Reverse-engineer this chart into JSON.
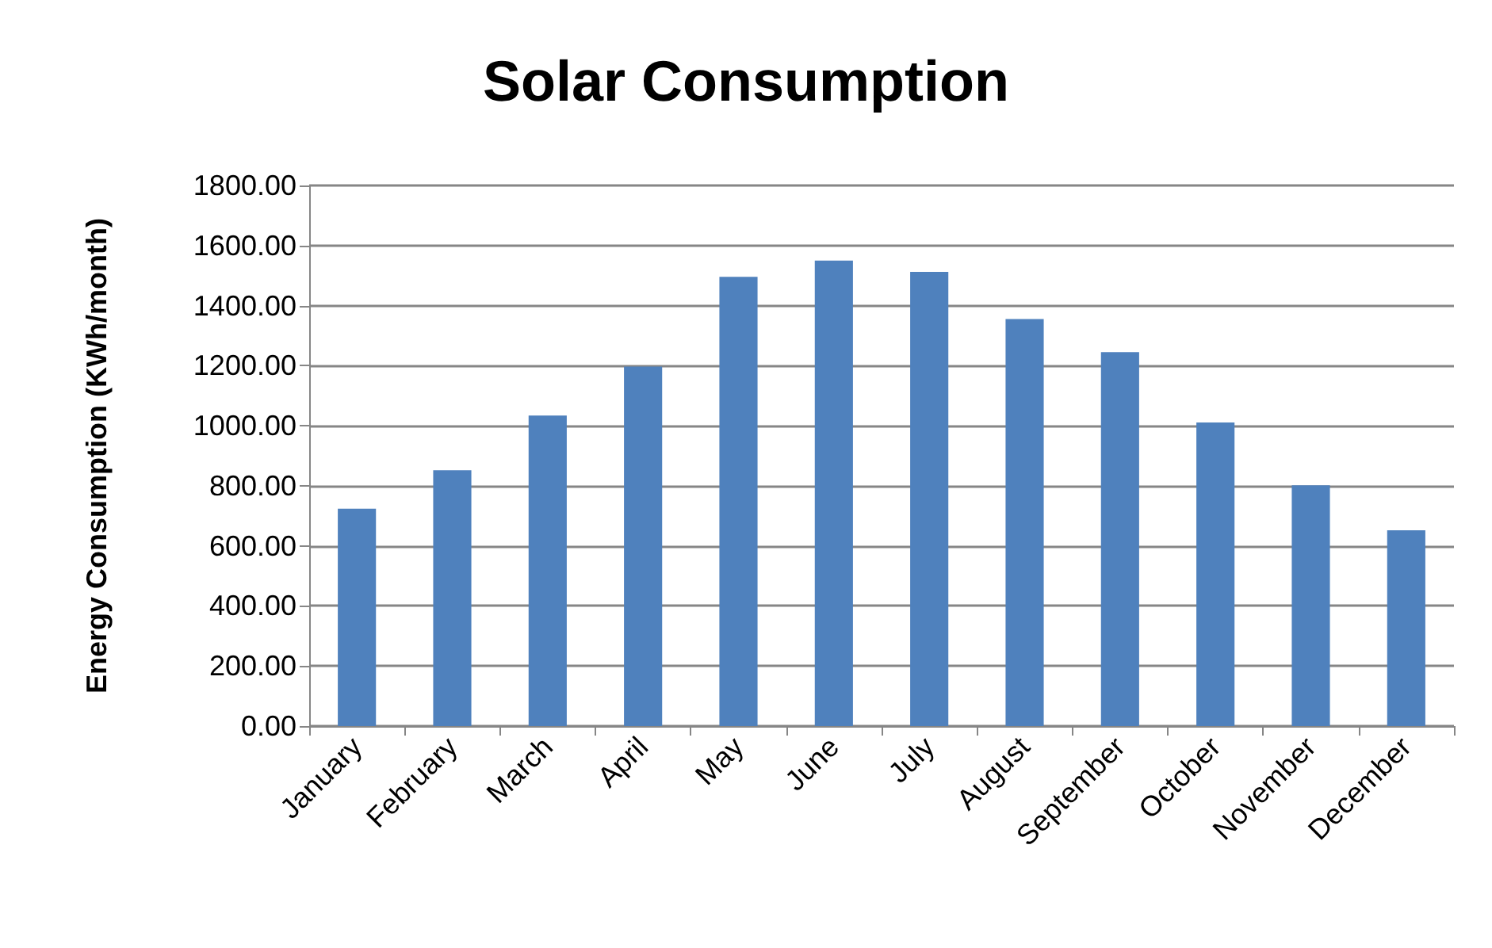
{
  "chart_data": {
    "type": "bar",
    "title": "Solar Consumption",
    "ylabel": "Energy Consumption (KWh/month)",
    "categories": [
      "January",
      "February",
      "March",
      "April",
      "May",
      "June",
      "July",
      "August",
      "September",
      "October",
      "November",
      "December"
    ],
    "values": [
      724,
      852,
      1034,
      1197,
      1496,
      1550,
      1512,
      1355,
      1245,
      1011,
      802,
      652
    ],
    "color": "#4f81bd",
    "ylim": [
      0,
      1800
    ],
    "yticks": [
      {
        "value": 0,
        "label": "0.00"
      },
      {
        "value": 200,
        "label": "200.00"
      },
      {
        "value": 400,
        "label": "400.00"
      },
      {
        "value": 600,
        "label": "600.00"
      },
      {
        "value": 800,
        "label": "800.00"
      },
      {
        "value": 1000,
        "label": "1000.00"
      },
      {
        "value": 1200,
        "label": "1200.00"
      },
      {
        "value": 1400,
        "label": "1400.00"
      },
      {
        "value": 1600,
        "label": "1600.00"
      },
      {
        "value": 1800,
        "label": "1800.00"
      }
    ],
    "grid": "y"
  }
}
